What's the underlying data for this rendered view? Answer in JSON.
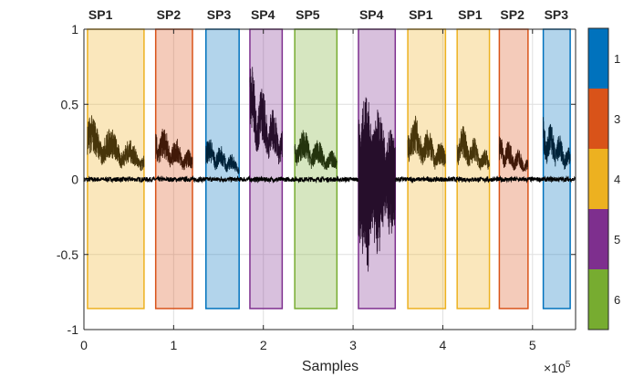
{
  "chart_data": {
    "type": "line",
    "title": "",
    "xlabel": "Samples",
    "ylabel": "",
    "x_exponent_label": "×10",
    "x_exponent_power": "5",
    "xlim": [
      0,
      548000
    ],
    "ylim": [
      -1,
      1
    ],
    "grid": true,
    "x_ticks": [
      0,
      100000,
      200000,
      300000,
      400000,
      500000
    ],
    "x_tick_labels": [
      "0",
      "1",
      "2",
      "3",
      "4",
      "5"
    ],
    "y_ticks": [
      1,
      0.5,
      0,
      -0.5,
      -1
    ],
    "y_tick_labels": [
      "1",
      "0.5",
      "0",
      "-0.5",
      "-1"
    ],
    "segment_box_ylim": [
      -0.86,
      1
    ],
    "segments": [
      {
        "label": "SP1",
        "class": 4,
        "start": 4000,
        "end": 67000,
        "amp": 0.45
      },
      {
        "label": "SP2",
        "class": 3,
        "start": 80000,
        "end": 121000,
        "amp": 0.4
      },
      {
        "label": "SP3",
        "class": 1,
        "start": 136000,
        "end": 173000,
        "amp": 0.3
      },
      {
        "label": "SP4",
        "class": 5,
        "start": 185000,
        "end": 221000,
        "amp": 0.8
      },
      {
        "label": "SP5",
        "class": 6,
        "start": 235000,
        "end": 282000,
        "amp": 0.38
      },
      {
        "label": "SP4",
        "class": 5,
        "start": 306000,
        "end": 347000,
        "amp": 0.68
      },
      {
        "label": "SP1",
        "class": 4,
        "start": 361000,
        "end": 403000,
        "amp": 0.48
      },
      {
        "label": "SP1",
        "class": 4,
        "start": 416000,
        "end": 452000,
        "amp": 0.4
      },
      {
        "label": "SP2",
        "class": 3,
        "start": 463000,
        "end": 495000,
        "amp": 0.32
      },
      {
        "label": "SP3",
        "class": 1,
        "start": 512000,
        "end": 542000,
        "amp": 0.45
      }
    ],
    "colorbar": {
      "labels": [
        "1",
        "3",
        "4",
        "5",
        "6"
      ],
      "colors": [
        "#0072BD",
        "#D95319",
        "#EDB120",
        "#7E2F8E",
        "#77AC30"
      ]
    },
    "class_colors": {
      "1": "#0072BD",
      "3": "#D95319",
      "4": "#EDB120",
      "5": "#7E2F8E",
      "6": "#77AC30"
    },
    "waveform_color": "#000000"
  }
}
